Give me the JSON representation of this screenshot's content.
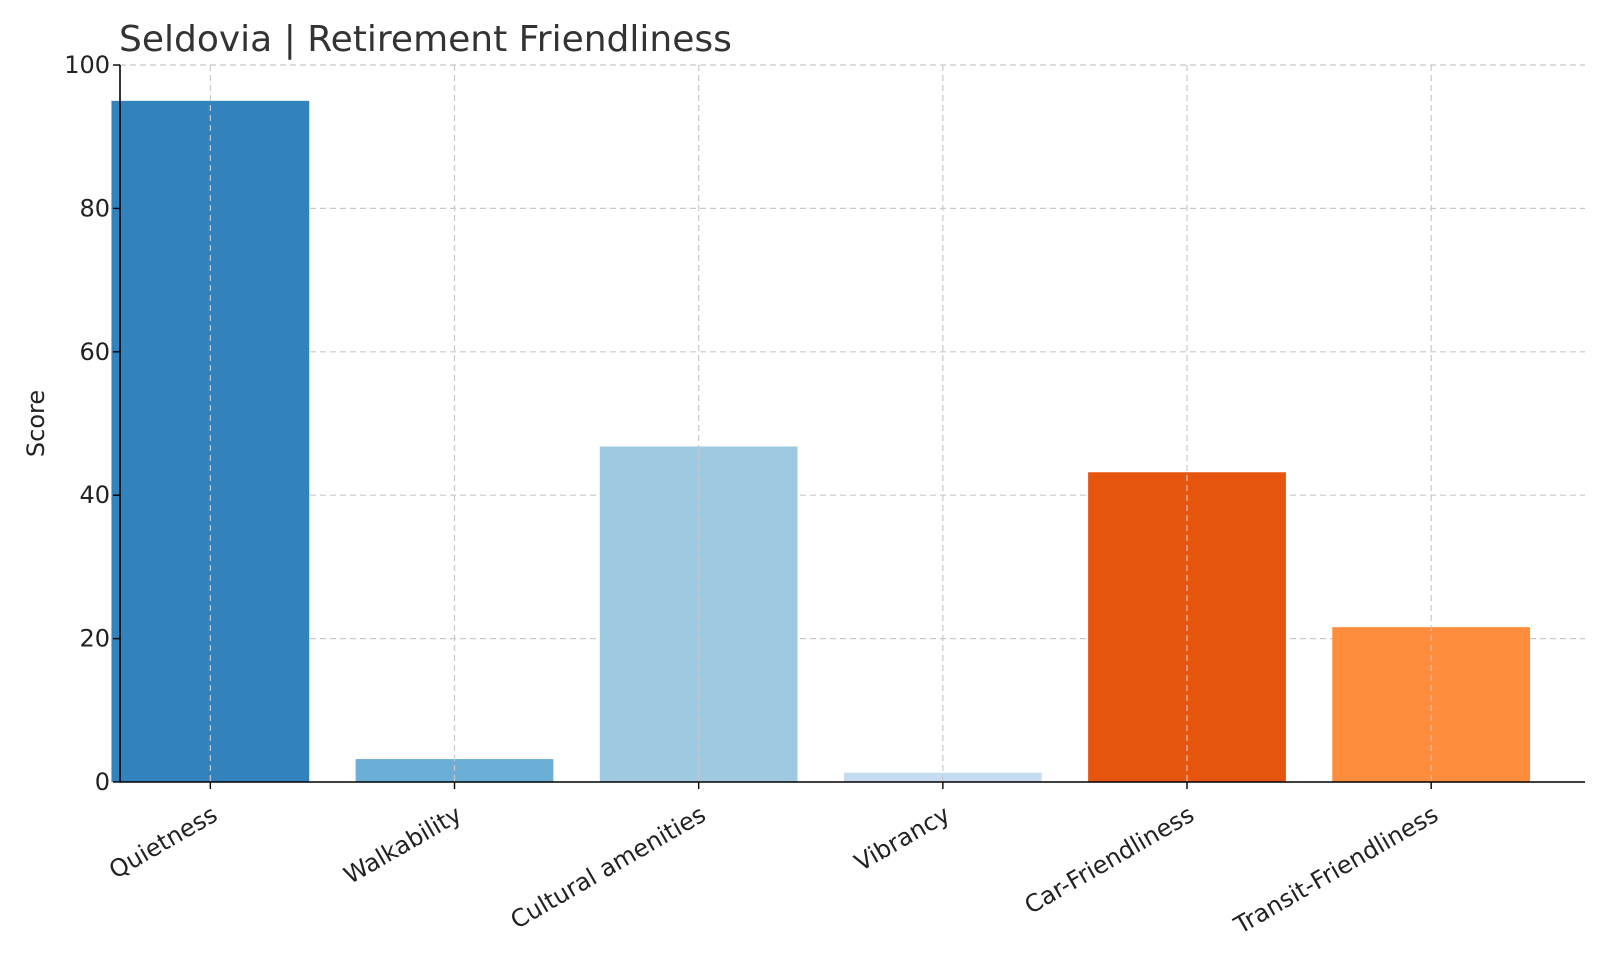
{
  "chart_data": {
    "type": "bar",
    "title": "Seldovia | Retirement Friendliness",
    "xlabel": "",
    "ylabel": "Score",
    "categories": [
      "Quietness",
      "Walkability",
      "Cultural amenities",
      "Vibrancy",
      "Car-Friendliness",
      "Transit-Friendliness"
    ],
    "values": [
      95,
      3.2,
      46.8,
      1.3,
      43.2,
      21.6
    ],
    "colors": [
      "#3182bd",
      "#6baed6",
      "#9ecae1",
      "#c6dbef",
      "#e6550d",
      "#fd8d3c"
    ],
    "ylim": [
      0,
      100
    ],
    "yticks": [
      0,
      20,
      40,
      60,
      80,
      100
    ],
    "grid": true,
    "legend": "none"
  }
}
